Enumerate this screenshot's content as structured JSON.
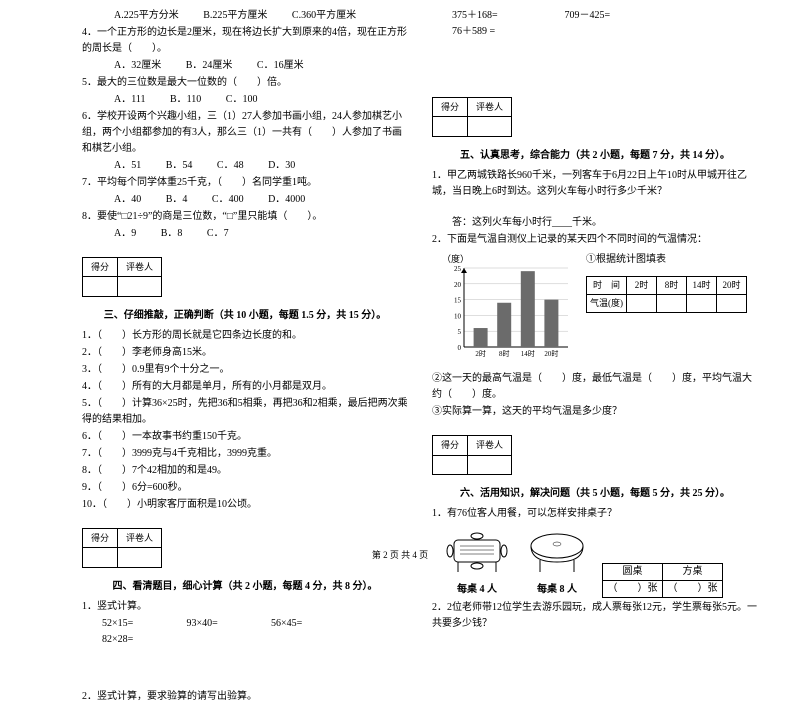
{
  "left": {
    "q3_opts": [
      "A.225平方分米",
      "B.225平方厘米",
      "C.360平方厘米"
    ],
    "q4": "4．一个正方形的边长是2厘米，现在将边长扩大到原来的4倍，现在正方形的周长是（　　）。",
    "q4_opts": [
      "A．32厘米",
      "B．24厘米",
      "C．16厘米"
    ],
    "q5": "5．最大的三位数是最大一位数的（　　）倍。",
    "q5_opts": [
      "A．111",
      "B．110",
      "C．100"
    ],
    "q6": "6．学校开设两个兴趣小组，三（1）27人参加书画小组，24人参加棋艺小组，两个小组都参加的有3人，那么三（1）一共有（　　）人参加了书画和棋艺小组。",
    "q6_opts": [
      "A．51",
      "B．54",
      "C．48",
      "D．30"
    ],
    "q7": "7．平均每个同学体重25千克，（　　）名同学重1吨。",
    "q7_opts": [
      "A．40",
      "B．4",
      "C．400",
      "D．4000"
    ],
    "q8": "8．要使“□21÷9”的商是三位数，“□”里只能填（　　）。",
    "q8_opts": [
      "A．9",
      "B．8",
      "C．7"
    ],
    "score_header": [
      "得分",
      "评卷人"
    ],
    "sec3_title": "三、仔细推敲，正确判断（共 10 小题，每题 1.5 分，共 15 分）。",
    "j1": "1．（　　）长方形的周长就是它四条边长度的和。",
    "j2": "2．（　　）李老师身高15米。",
    "j3": "3．（　　）0.9里有9个十分之一。",
    "j4": "4．（　　）所有的大月都是单月，所有的小月都是双月。",
    "j5": "5．（　　）计算36×25时，先把36和5相乘，再把36和2相乘，最后把两次乘得的结果相加。",
    "j6": "6．（　　）一本故事书约重150千克。",
    "j7": "7．（　　）3999克与4千克相比，3999克重。",
    "j8": "8．（　　）7个42相加的和是49。",
    "j9": "9．（　　）6分=600秒。",
    "j10": "10．（　　）小明家客厅面积是10公顷。",
    "sec4_title": "四、看清题目，细心计算（共 2 小题，每题 4 分，共 8 分）。",
    "c1": "1．竖式计算。",
    "c1_items": [
      "52×15=",
      "93×40=",
      "56×45=",
      "82×28="
    ],
    "c2": "2．竖式计算，要求验算的请写出验算。"
  },
  "right": {
    "top_calc": [
      "375＋168=",
      "709－425=",
      "76＋589 ="
    ],
    "score_header": [
      "得分",
      "评卷人"
    ],
    "sec5_title": "五、认真思考，综合能力（共 2 小题，每题 7 分，共 14 分）。",
    "q51": "1．甲乙两城铁路长960千米，一列客车于6月22日上午10时从甲城开往乙城，当日晚上6时到达。这列火车每小时行多少千米？",
    "q51_ans": "答：这列火车每小时行____千米。",
    "q52": "2．下面是气温自测仪上记录的某天四个不同时间的气温情况：",
    "chart_ylabel": "（度）",
    "chart_caption": "①根据统计图填表",
    "chart": {
      "y_ticks": [
        25,
        20,
        15,
        10,
        5,
        0
      ],
      "x_labels": [
        "2时",
        "8时",
        "14时",
        "20时"
      ],
      "values": [
        6,
        14,
        24,
        15
      ],
      "bar_color": "#6b6b6b",
      "y_max": 25,
      "grid_color": "#bdbdbd"
    },
    "temp_table": {
      "row1": [
        "时　间",
        "2时",
        "8时",
        "14时",
        "20时"
      ],
      "row2_label": "气温(度)"
    },
    "q52b": "②这一天的最高气温是（　　）度，最低气温是（　　）度，平均气温大约（　　）度。",
    "q52c": "③实际算一算，这天的平均气温是多少度？",
    "sec6_title": "六、活用知识，解决问题（共 5 小题，每题 5 分，共 25 分）。",
    "q61": "1．有76位客人用餐，可以怎样安排桌子？",
    "desk_left": "每桌 4 人",
    "desk_right": "每桌 8 人",
    "rs_table": {
      "h1": "圆桌",
      "h2": "方桌",
      "c1": "（　　）张",
      "c2": "（　　）张"
    },
    "q62": "2．2位老师带12位学生去游乐园玩，成人票每张12元，学生票每张5元。一共要多少钱？"
  },
  "footer": "第 2 页 共 4 页"
}
